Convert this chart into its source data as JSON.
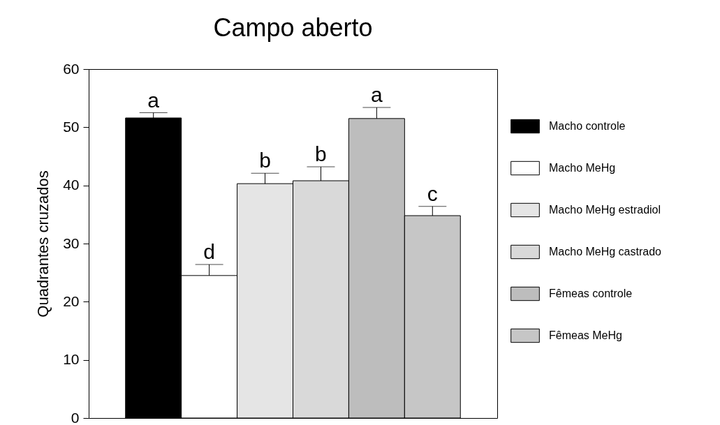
{
  "chart_data": {
    "type": "bar",
    "title": "Campo aberto",
    "ylabel": "Quadrantes cruzados",
    "categories": [
      null
    ],
    "series": [
      {
        "name": "Macho controle",
        "color": "#000000",
        "values": [
          51.6
        ],
        "errors": [
          [
            51.6,
            52.5
          ]
        ]
      },
      {
        "name": "Macho MeHg",
        "color": "#ffffff",
        "values": [
          24.5
        ],
        "errors": [
          [
            24.5,
            26.4
          ]
        ]
      },
      {
        "name": "Macho MeHg estradiol",
        "color": "#e5e5e5",
        "values": [
          40.3
        ],
        "errors": [
          [
            40.3,
            42.1
          ]
        ]
      },
      {
        "name": "Macho MeHg castrado",
        "color": "#d9d9d9",
        "values": [
          40.8
        ],
        "errors": [
          [
            40.8,
            43.2
          ]
        ]
      },
      {
        "name": "Fêmeas controle",
        "color": "#bdbdbd",
        "values": [
          51.5
        ],
        "errors": [
          [
            51.5,
            53.4
          ]
        ]
      },
      {
        "name": "Fêmeas MeHg",
        "color": "#c6c6c6",
        "values": [
          34.8
        ],
        "errors": [
          [
            34.8,
            36.4
          ]
        ]
      }
    ],
    "annotations": [
      {
        "text": "a",
        "y": 52.5
      },
      {
        "text": "d",
        "y": 26.4
      },
      {
        "text": "b",
        "y": 42.1
      },
      {
        "text": "b",
        "y": 43.2
      },
      {
        "text": "a",
        "y": 53.4
      },
      {
        "text": "c",
        "y": 36.4
      }
    ],
    "ylim": [
      0,
      60
    ],
    "yticks": [
      0,
      10,
      20,
      30,
      40,
      50,
      60
    ],
    "tick_labels": "y",
    "legend": "right"
  }
}
